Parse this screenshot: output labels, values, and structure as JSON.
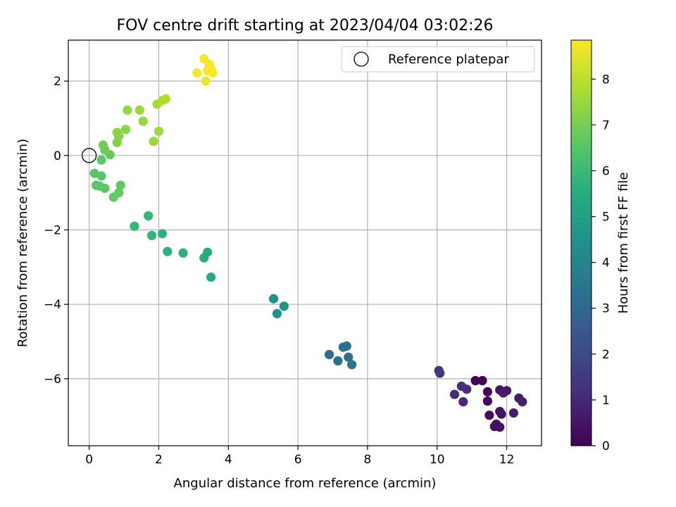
{
  "chart_data": {
    "type": "scatter",
    "title": "FOV centre drift starting at 2023/04/04 03:02:26",
    "xlabel": "Angular distance from reference (arcmin)",
    "ylabel": "Rotation from reference (arcmin)",
    "xlim": [
      -0.6,
      13.0
    ],
    "ylim": [
      -7.8,
      3.1
    ],
    "xticks": [
      0,
      2,
      4,
      6,
      8,
      10,
      12
    ],
    "yticks": [
      -6,
      -4,
      -2,
      0,
      2
    ],
    "grid": true,
    "legend": {
      "position": "top-right",
      "entries": [
        "Reference platepar"
      ]
    },
    "reference_point": {
      "x": 0,
      "y": 0
    },
    "colorbar": {
      "label": "Hours from first FF file",
      "range": [
        0,
        8.85
      ],
      "ticks": [
        0,
        1,
        2,
        3,
        4,
        5,
        6,
        7,
        8
      ],
      "colormap": "viridis"
    },
    "points": [
      {
        "x": 11.1,
        "y": -6.05,
        "c": 0.05
      },
      {
        "x": 11.3,
        "y": -6.05,
        "c": 0.1
      },
      {
        "x": 11.45,
        "y": -6.35,
        "c": 0.15
      },
      {
        "x": 11.45,
        "y": -6.6,
        "c": 0.2
      },
      {
        "x": 11.5,
        "y": -6.98,
        "c": 0.25
      },
      {
        "x": 11.65,
        "y": -7.28,
        "c": 0.3
      },
      {
        "x": 11.7,
        "y": -7.22,
        "c": 0.35
      },
      {
        "x": 11.8,
        "y": -7.3,
        "c": 0.4
      },
      {
        "x": 11.8,
        "y": -6.88,
        "c": 0.45
      },
      {
        "x": 11.85,
        "y": -6.95,
        "c": 0.5
      },
      {
        "x": 11.8,
        "y": -6.3,
        "c": 0.55
      },
      {
        "x": 11.9,
        "y": -6.38,
        "c": 0.6
      },
      {
        "x": 12.0,
        "y": -6.32,
        "c": 0.65
      },
      {
        "x": 12.2,
        "y": -6.92,
        "c": 0.7
      },
      {
        "x": 12.35,
        "y": -6.52,
        "c": 0.75
      },
      {
        "x": 12.45,
        "y": -6.62,
        "c": 0.8
      },
      {
        "x": 10.05,
        "y": -5.78,
        "c": 1.35
      },
      {
        "x": 10.08,
        "y": -5.85,
        "c": 1.45
      },
      {
        "x": 10.5,
        "y": -6.42,
        "c": 1.1
      },
      {
        "x": 10.7,
        "y": -6.2,
        "c": 1.2
      },
      {
        "x": 10.75,
        "y": -6.62,
        "c": 1.0
      },
      {
        "x": 10.85,
        "y": -6.28,
        "c": 1.15
      },
      {
        "x": 6.9,
        "y": -5.35,
        "c": 3.2
      },
      {
        "x": 7.15,
        "y": -5.52,
        "c": 3.25
      },
      {
        "x": 7.3,
        "y": -5.15,
        "c": 3.3
      },
      {
        "x": 7.4,
        "y": -5.12,
        "c": 3.35
      },
      {
        "x": 7.45,
        "y": -5.42,
        "c": 3.3
      },
      {
        "x": 7.55,
        "y": -5.62,
        "c": 3.4
      },
      {
        "x": 5.3,
        "y": -3.85,
        "c": 4.4
      },
      {
        "x": 5.4,
        "y": -4.25,
        "c": 4.45
      },
      {
        "x": 5.6,
        "y": -4.05,
        "c": 4.5
      },
      {
        "x": 1.3,
        "y": -1.9,
        "c": 5.9
      },
      {
        "x": 1.7,
        "y": -1.62,
        "c": 5.85
      },
      {
        "x": 1.8,
        "y": -2.15,
        "c": 5.8
      },
      {
        "x": 2.1,
        "y": -2.1,
        "c": 5.75
      },
      {
        "x": 2.25,
        "y": -2.58,
        "c": 5.7
      },
      {
        "x": 2.7,
        "y": -2.62,
        "c": 5.65
      },
      {
        "x": 3.3,
        "y": -2.75,
        "c": 5.55
      },
      {
        "x": 3.4,
        "y": -2.6,
        "c": 5.5
      },
      {
        "x": 3.5,
        "y": -3.27,
        "c": 5.4
      },
      {
        "x": 0.15,
        "y": -0.48,
        "c": 6.5
      },
      {
        "x": 0.2,
        "y": -0.8,
        "c": 6.55
      },
      {
        "x": 0.3,
        "y": -0.82,
        "c": 6.6
      },
      {
        "x": 0.35,
        "y": -0.55,
        "c": 6.5
      },
      {
        "x": 0.45,
        "y": -0.88,
        "c": 6.6
      },
      {
        "x": 0.7,
        "y": -1.12,
        "c": 6.7
      },
      {
        "x": 0.85,
        "y": -1.0,
        "c": 6.75
      },
      {
        "x": 0.9,
        "y": -0.8,
        "c": 6.75
      },
      {
        "x": 0.35,
        "y": -0.12,
        "c": 6.65
      },
      {
        "x": 0.4,
        "y": 0.28,
        "c": 6.9
      },
      {
        "x": 0.45,
        "y": 0.15,
        "c": 6.85
      },
      {
        "x": 0.6,
        "y": 0.02,
        "c": 6.8
      },
      {
        "x": 0.8,
        "y": 0.35,
        "c": 7.2
      },
      {
        "x": 0.8,
        "y": 0.62,
        "c": 7.3
      },
      {
        "x": 0.85,
        "y": 0.52,
        "c": 7.25
      },
      {
        "x": 1.05,
        "y": 0.7,
        "c": 7.35
      },
      {
        "x": 1.1,
        "y": 1.22,
        "c": 7.45
      },
      {
        "x": 1.45,
        "y": 1.22,
        "c": 7.5
      },
      {
        "x": 1.55,
        "y": 0.92,
        "c": 7.45
      },
      {
        "x": 1.85,
        "y": 0.38,
        "c": 7.55
      },
      {
        "x": 1.95,
        "y": 1.38,
        "c": 7.7
      },
      {
        "x": 2.0,
        "y": 0.65,
        "c": 7.6
      },
      {
        "x": 2.1,
        "y": 1.48,
        "c": 7.75
      },
      {
        "x": 2.2,
        "y": 1.52,
        "c": 7.8
      },
      {
        "x": 3.1,
        "y": 2.22,
        "c": 8.7
      },
      {
        "x": 3.3,
        "y": 2.6,
        "c": 8.75
      },
      {
        "x": 3.35,
        "y": 2.0,
        "c": 8.65
      },
      {
        "x": 3.4,
        "y": 2.28,
        "c": 8.8
      },
      {
        "x": 3.45,
        "y": 2.45,
        "c": 8.7
      },
      {
        "x": 3.5,
        "y": 2.32,
        "c": 8.8
      },
      {
        "x": 3.55,
        "y": 2.22,
        "c": 8.85
      }
    ]
  }
}
